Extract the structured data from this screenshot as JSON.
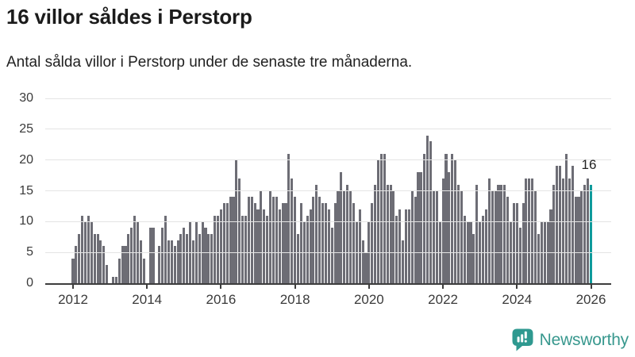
{
  "header": {
    "title": "16 villor såldes i Perstorp",
    "subtitle": "Antal sålda villor i Perstorp under de senaste tre månaderna."
  },
  "chart_data": {
    "type": "bar",
    "title": "16 villor såldes i Perstorp",
    "xlabel": "",
    "ylabel": "",
    "ylim": [
      0,
      30
    ],
    "grid": true,
    "legend": false,
    "y_ticks": [
      0,
      5,
      10,
      15,
      20,
      25,
      30
    ],
    "x_tick_labels": [
      "2012",
      "2014",
      "2016",
      "2018",
      "2020",
      "2022",
      "2024",
      "2026"
    ],
    "start_month": "2012-01",
    "end_month": "2026-01",
    "values": [
      4,
      6,
      8,
      11,
      10,
      11,
      10,
      8,
      8,
      7,
      6,
      3,
      0,
      1,
      1,
      4,
      6,
      6,
      8,
      9,
      11,
      10,
      7,
      4,
      0,
      9,
      9,
      0,
      6,
      9,
      11,
      7,
      7,
      6,
      7,
      8,
      9,
      8,
      10,
      7,
      10,
      8,
      10,
      9,
      8,
      8,
      11,
      11,
      12,
      13,
      13,
      14,
      14,
      20,
      17,
      11,
      11,
      14,
      14,
      13,
      12,
      15,
      12,
      11,
      15,
      14,
      14,
      12,
      13,
      13,
      21,
      17,
      14,
      8,
      13,
      10,
      11,
      12,
      14,
      16,
      14,
      13,
      13,
      12,
      9,
      13,
      15,
      18,
      15,
      16,
      15,
      13,
      10,
      12,
      7,
      5,
      10,
      13,
      16,
      20,
      21,
      21,
      16,
      16,
      15,
      11,
      12,
      7,
      12,
      12,
      15,
      14,
      18,
      18,
      21,
      24,
      23,
      15,
      15,
      10,
      17,
      21,
      18,
      21,
      20,
      16,
      15,
      11,
      10,
      10,
      8,
      16,
      10,
      11,
      12,
      17,
      15,
      15,
      16,
      16,
      16,
      14,
      10,
      13,
      13,
      9,
      13,
      17,
      17,
      17,
      15,
      8,
      10,
      10,
      10,
      12,
      16,
      19,
      19,
      17,
      21,
      17,
      19,
      14,
      14,
      15,
      16,
      17,
      16
    ],
    "highlight_index": 168,
    "annotation": {
      "text": "16"
    },
    "colors": {
      "bar": "#6d6d75",
      "highlight": "#0f9b9c",
      "gridline": "#e4e4e4",
      "axis": "#3d3d3d",
      "tick_label": "#3a3a3a"
    }
  },
  "footer": {
    "brand": "Newsworthy",
    "brand_color": "#38988e",
    "icon": "newsworthy-chart-bubble-icon"
  }
}
